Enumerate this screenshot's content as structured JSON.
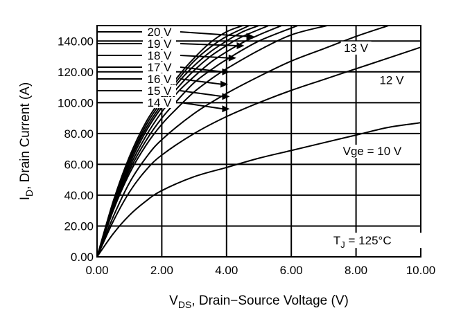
{
  "chart_data": {
    "type": "line",
    "xlabel": "V",
    "xlabel_sub": "DS",
    "xlabel_rest": ", Drain−Source Voltage (V)",
    "ylabel": "I",
    "ylabel_sub": "D",
    "ylabel_rest": ", Drain Current (A)",
    "xlim": [
      0,
      10
    ],
    "ylim": [
      0,
      150
    ],
    "x_ticks": [
      0,
      2,
      4,
      6,
      8,
      10
    ],
    "x_tick_labels": [
      "0.00",
      "2.00",
      "4.00",
      "6.00",
      "8.00",
      "10.00"
    ],
    "y_ticks": [
      0,
      20,
      40,
      60,
      80,
      100,
      120,
      140
    ],
    "y_tick_labels": [
      "0.00",
      "20.00",
      "40.00",
      "60.00",
      "80.00",
      "100.00",
      "120.00",
      "140.00"
    ],
    "grid": true,
    "annotation": {
      "main": "T",
      "sub": "J",
      "rest": " = 125°C"
    },
    "series": [
      {
        "name": "Vge = 10 V",
        "x": [
          0,
          0.5,
          1,
          1.5,
          2,
          3,
          4,
          5,
          6,
          7,
          8,
          9,
          10
        ],
        "y": [
          0,
          15,
          27,
          36,
          43,
          52,
          58,
          64,
          69,
          74,
          79,
          84,
          87
        ]
      },
      {
        "name": "12 V",
        "x": [
          0,
          0.5,
          1,
          1.5,
          2,
          3,
          4,
          5,
          6,
          7,
          8,
          9,
          10
        ],
        "y": [
          0,
          23,
          42,
          56,
          66,
          80,
          91,
          100,
          108,
          115,
          122,
          129,
          136
        ]
      },
      {
        "name": "13 V",
        "x": [
          0,
          0.5,
          1,
          1.5,
          2,
          3,
          4,
          5,
          6,
          7,
          8,
          9
        ],
        "y": [
          0,
          26,
          48,
          64,
          76,
          93,
          106,
          117,
          127,
          135,
          143,
          150
        ]
      },
      {
        "name": "14 V",
        "x": [
          0,
          0.5,
          1,
          1.5,
          2,
          2.5,
          3,
          3.5,
          4,
          5,
          6,
          7.1
        ],
        "y": [
          0,
          30,
          54,
          72,
          86,
          97,
          107,
          115,
          122,
          134,
          144,
          150
        ]
      },
      {
        "name": "15 V",
        "x": [
          0,
          0.5,
          1,
          1.5,
          2,
          2.5,
          3,
          3.5,
          4,
          5,
          6.2
        ],
        "y": [
          0,
          31,
          56,
          75,
          90,
          102,
          113,
          121,
          128,
          140,
          150
        ]
      },
      {
        "name": "16 V",
        "x": [
          0,
          0.5,
          1,
          1.5,
          2,
          2.5,
          3,
          3.5,
          4,
          4.5,
          5,
          5.7
        ],
        "y": [
          0,
          32,
          58,
          78,
          94,
          107,
          117,
          126,
          133,
          139,
          144,
          150
        ]
      },
      {
        "name": "17 V",
        "x": [
          0,
          0.5,
          1,
          1.5,
          2,
          2.5,
          3,
          3.5,
          4,
          4.5,
          5.3
        ],
        "y": [
          0,
          33,
          60,
          81,
          97,
          110,
          121,
          130,
          137,
          143,
          150
        ]
      },
      {
        "name": "18 V",
        "x": [
          0,
          0.5,
          1,
          1.5,
          2,
          2.5,
          3,
          3.5,
          4,
          4.5,
          5.0
        ],
        "y": [
          0,
          34,
          62,
          83,
          99,
          113,
          124,
          133,
          140,
          146,
          150
        ]
      },
      {
        "name": "19 V",
        "x": [
          0,
          0.5,
          1,
          1.5,
          2,
          2.5,
          3,
          3.5,
          4,
          4.7
        ],
        "y": [
          0,
          35,
          63,
          85,
          101,
          115,
          127,
          136,
          143,
          150
        ]
      },
      {
        "name": "20 V",
        "x": [
          0,
          0.5,
          1,
          1.5,
          2,
          2.5,
          3,
          3.5,
          4,
          4.5
        ],
        "y": [
          0,
          36,
          65,
          87,
          103,
          117,
          129,
          139,
          146,
          150
        ]
      }
    ],
    "curve_labels": [
      {
        "text": "20 V",
        "series": 9,
        "arrow_target": [
          4.85,
          143
        ]
      },
      {
        "text": "19 V",
        "series": 8,
        "arrow_target": [
          4.55,
          137
        ]
      },
      {
        "text": "18 V",
        "series": 7,
        "arrow_target": [
          4.3,
          129
        ]
      },
      {
        "text": "17 V",
        "series": 6,
        "arrow_target": [
          4.1,
          120
        ]
      },
      {
        "text": "16 V",
        "series": 5,
        "arrow_target": [
          4.05,
          112
        ]
      },
      {
        "text": "15 V",
        "series": 4,
        "arrow_target": [
          4.1,
          104
        ]
      },
      {
        "text": "14 V",
        "series": 3,
        "arrow_target": [
          4.1,
          96
        ]
      }
    ],
    "inline_labels": [
      {
        "text": "13 V",
        "x": 8.0,
        "y": 133
      },
      {
        "text": "12 V",
        "x": 9.1,
        "y": 112
      },
      {
        "text": "Vge = 10 V",
        "x": 8.5,
        "y": 66
      }
    ]
  }
}
